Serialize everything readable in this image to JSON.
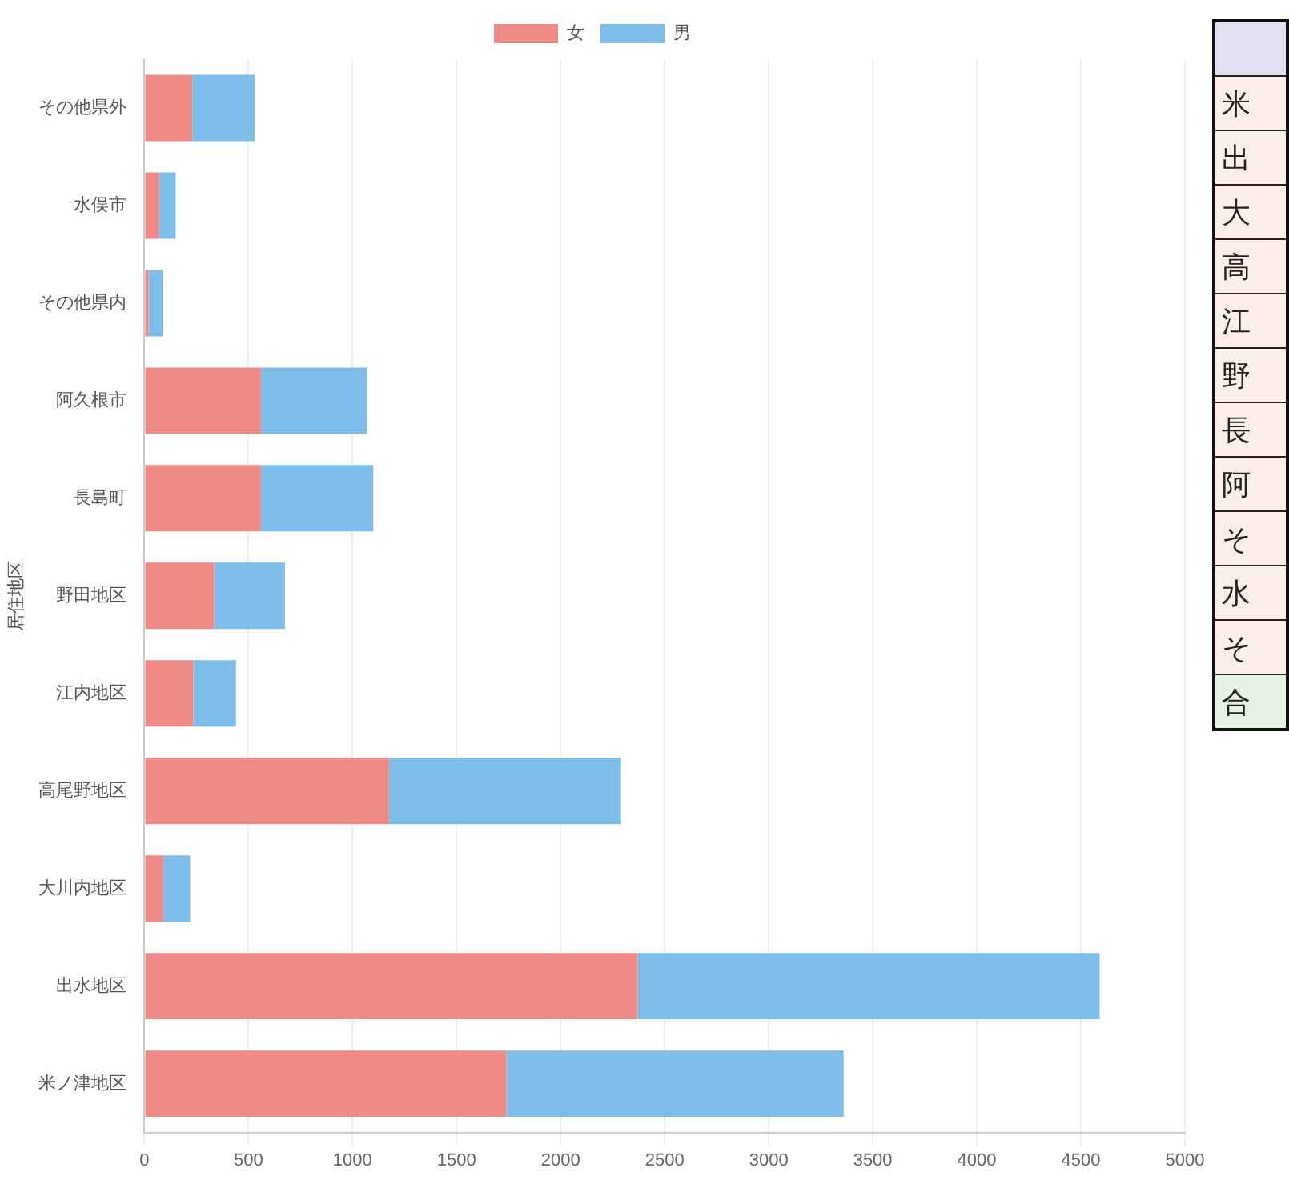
{
  "chart_data": {
    "type": "bar",
    "orientation": "horizontal",
    "stacked": true,
    "categories": [
      "その他県外",
      "水俣市",
      "その他県内",
      "阿久根市",
      "長島町",
      "野田地区",
      "江内地区",
      "高尾野地区",
      "大川内地区",
      "出水地区",
      "米ノ津地区"
    ],
    "series": [
      {
        "name": "女",
        "color": "#f08a84",
        "values": [
          230,
          70,
          20,
          560,
          560,
          335,
          235,
          1175,
          90,
          2370,
          1740
        ]
      },
      {
        "name": "男",
        "color": "#7dbdea",
        "values": [
          300,
          80,
          70,
          510,
          540,
          340,
          205,
          1115,
          130,
          2220,
          1620
        ]
      }
    ],
    "ylabel": "居住地区",
    "xlim": [
      0,
      5000
    ],
    "xticks": [
      0,
      500,
      1000,
      1500,
      2000,
      2500,
      3000,
      3500,
      4000,
      4500,
      5000
    ],
    "grid": "x",
    "legend": "top",
    "annotations": [
      "米",
      "出",
      "大",
      "高",
      "江",
      "野",
      "長",
      "阿",
      "そ",
      "水",
      "そ",
      "合"
    ]
  }
}
